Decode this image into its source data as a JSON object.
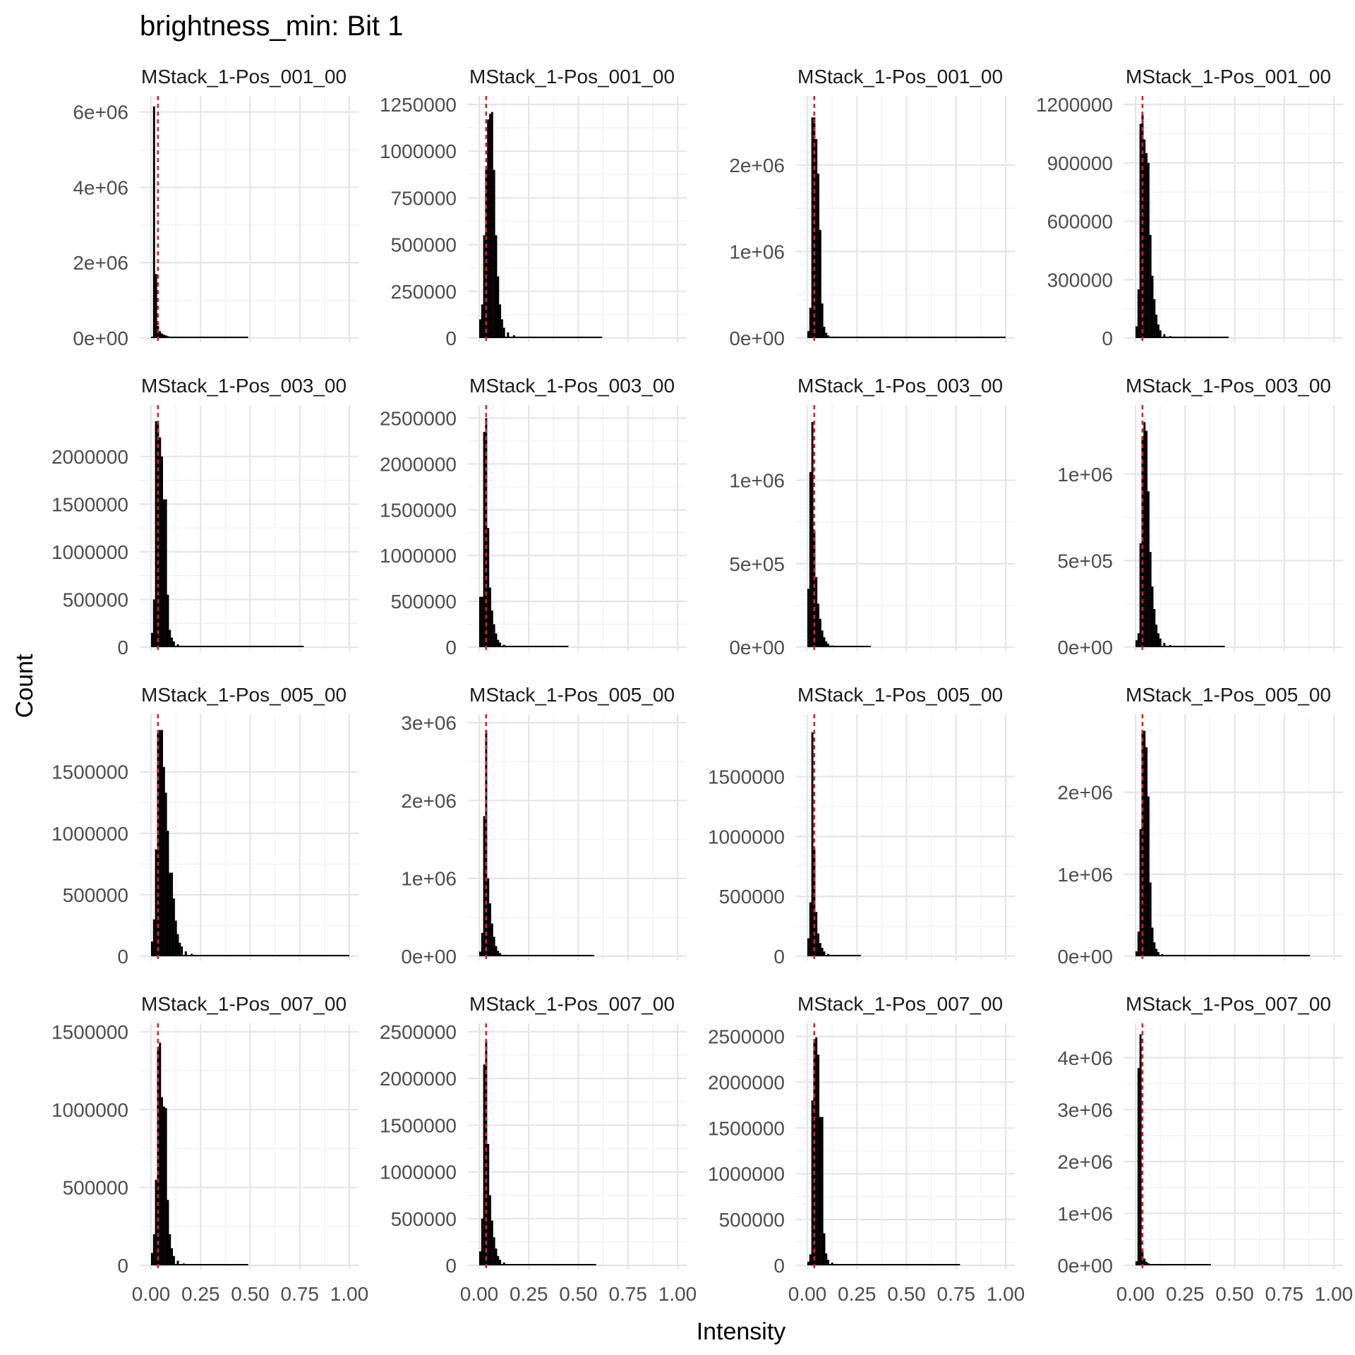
{
  "chart_data": {
    "type": "histogram",
    "title": "brightness_min: Bit 1",
    "xlabel": "Intensity",
    "ylabel": "Count",
    "x_ticks": [
      "0.00",
      "0.25",
      "0.50",
      "0.75",
      "1.00"
    ],
    "xlim": [
      0,
      1
    ],
    "threshold_line": {
      "x": 0.035,
      "color": "#e41a1c",
      "style": "dashed"
    },
    "bar_color": "#000000",
    "grid": true,
    "panels": [
      {
        "label": "MStack_1-Pos_001_00",
        "ymax": 6200000,
        "ticks": [
          0,
          2000000,
          4000000,
          6000000
        ],
        "tick_labels": [
          "0e+00",
          "2e+06",
          "4e+06",
          "6e+06"
        ],
        "max_x": 0.49,
        "bins": [
          [
            0.01,
            6150000
          ],
          [
            0.02,
            1700000
          ],
          [
            0.03,
            320000
          ],
          [
            0.04,
            180000
          ],
          [
            0.05,
            120000
          ],
          [
            0.06,
            90000
          ],
          [
            0.07,
            70000
          ],
          [
            0.08,
            50000
          ],
          [
            0.09,
            35000
          ],
          [
            0.1,
            25000
          ],
          [
            0.12,
            15000
          ],
          [
            0.15,
            8000
          ]
        ]
      },
      {
        "label": "MStack_1-Pos_001_00",
        "ymax": 1250000,
        "ticks": [
          0,
          250000,
          500000,
          750000,
          1000000,
          1250000
        ],
        "tick_labels": [
          "0",
          "250000",
          "500000",
          "750000",
          "1000000",
          "1250000"
        ],
        "max_x": 0.62,
        "bins": [
          [
            0.0,
            100000
          ],
          [
            0.01,
            180000
          ],
          [
            0.02,
            550000
          ],
          [
            0.03,
            900000
          ],
          [
            0.04,
            1170000
          ],
          [
            0.05,
            1200000
          ],
          [
            0.06,
            1210000
          ],
          [
            0.07,
            900000
          ],
          [
            0.08,
            550000
          ],
          [
            0.09,
            330000
          ],
          [
            0.1,
            180000
          ],
          [
            0.11,
            100000
          ],
          [
            0.12,
            55000
          ],
          [
            0.14,
            30000
          ],
          [
            0.17,
            15000
          ]
        ]
      },
      {
        "label": "MStack_1-Pos_001_00",
        "ymax": 2700000,
        "ticks": [
          0,
          1000000,
          2000000
        ],
        "tick_labels": [
          "0e+00",
          "1e+06",
          "2e+06"
        ],
        "max_x": 1.0,
        "bins": [
          [
            0.0,
            80000
          ],
          [
            0.01,
            350000
          ],
          [
            0.02,
            2550000
          ],
          [
            0.03,
            2550000
          ],
          [
            0.04,
            2300000
          ],
          [
            0.05,
            1900000
          ],
          [
            0.06,
            1250000
          ],
          [
            0.07,
            400000
          ],
          [
            0.08,
            130000
          ],
          [
            0.09,
            60000
          ],
          [
            0.1,
            30000
          ],
          [
            0.12,
            15000
          ]
        ]
      },
      {
        "label": "MStack_1-Pos_001_00",
        "ymax": 1200000,
        "ticks": [
          0,
          300000,
          600000,
          900000,
          1200000
        ],
        "tick_labels": [
          "0",
          "300000",
          "600000",
          "900000",
          "1200000"
        ],
        "max_x": 0.47,
        "bins": [
          [
            0.0,
            60000
          ],
          [
            0.01,
            250000
          ],
          [
            0.02,
            1100000
          ],
          [
            0.03,
            1150000
          ],
          [
            0.04,
            1020000
          ],
          [
            0.05,
            950000
          ],
          [
            0.06,
            900000
          ],
          [
            0.07,
            530000
          ],
          [
            0.08,
            320000
          ],
          [
            0.09,
            200000
          ],
          [
            0.1,
            120000
          ],
          [
            0.11,
            70000
          ],
          [
            0.12,
            40000
          ],
          [
            0.14,
            20000
          ],
          [
            0.17,
            10000
          ]
        ]
      },
      {
        "label": "MStack_1-Pos_003_00",
        "ymax": 2450000,
        "ticks": [
          0,
          500000,
          1000000,
          1500000,
          2000000
        ],
        "tick_labels": [
          "0",
          "500000",
          "1000000",
          "1500000",
          "2000000"
        ],
        "max_x": 0.77,
        "bins": [
          [
            0.0,
            150000
          ],
          [
            0.01,
            500000
          ],
          [
            0.02,
            2370000
          ],
          [
            0.03,
            2370000
          ],
          [
            0.04,
            2200000
          ],
          [
            0.05,
            2000000
          ],
          [
            0.06,
            1550000
          ],
          [
            0.07,
            1550000
          ],
          [
            0.08,
            550000
          ],
          [
            0.09,
            180000
          ],
          [
            0.1,
            100000
          ],
          [
            0.11,
            60000
          ],
          [
            0.13,
            30000
          ],
          [
            0.16,
            15000
          ]
        ]
      },
      {
        "label": "MStack_1-Pos_003_00",
        "ymax": 2550000,
        "ticks": [
          0,
          500000,
          1000000,
          1500000,
          2000000,
          2500000
        ],
        "tick_labels": [
          "0",
          "500000",
          "1000000",
          "1500000",
          "2000000",
          "2500000"
        ],
        "max_x": 0.45,
        "bins": [
          [
            0.0,
            550000
          ],
          [
            0.01,
            550000
          ],
          [
            0.02,
            2350000
          ],
          [
            0.03,
            2500000
          ],
          [
            0.04,
            1300000
          ],
          [
            0.05,
            650000
          ],
          [
            0.06,
            400000
          ],
          [
            0.07,
            250000
          ],
          [
            0.08,
            150000
          ],
          [
            0.09,
            80000
          ],
          [
            0.1,
            50000
          ],
          [
            0.12,
            25000
          ],
          [
            0.15,
            10000
          ]
        ]
      },
      {
        "label": "MStack_1-Pos_003_00",
        "ymax": 1400000,
        "ticks": [
          0,
          500000,
          1000000
        ],
        "tick_labels": [
          "0e+00",
          "5e+05",
          "1e+06"
        ],
        "max_x": 0.32,
        "bins": [
          [
            0.0,
            350000
          ],
          [
            0.01,
            1050000
          ],
          [
            0.02,
            1350000
          ],
          [
            0.03,
            700000
          ],
          [
            0.04,
            420000
          ],
          [
            0.05,
            260000
          ],
          [
            0.06,
            170000
          ],
          [
            0.07,
            100000
          ],
          [
            0.08,
            60000
          ],
          [
            0.09,
            35000
          ],
          [
            0.1,
            20000
          ],
          [
            0.12,
            10000
          ]
        ]
      },
      {
        "label": "MStack_1-Pos_003_00",
        "ymax": 1350000,
        "ticks": [
          0,
          500000,
          1000000
        ],
        "tick_labels": [
          "0e+00",
          "5e+05",
          "1e+06"
        ],
        "max_x": 0.45,
        "bins": [
          [
            0.0,
            40000
          ],
          [
            0.01,
            80000
          ],
          [
            0.02,
            600000
          ],
          [
            0.03,
            1220000
          ],
          [
            0.04,
            1300000
          ],
          [
            0.05,
            1250000
          ],
          [
            0.06,
            900000
          ],
          [
            0.07,
            550000
          ],
          [
            0.08,
            350000
          ],
          [
            0.09,
            220000
          ],
          [
            0.1,
            130000
          ],
          [
            0.11,
            80000
          ],
          [
            0.12,
            50000
          ],
          [
            0.14,
            25000
          ],
          [
            0.17,
            12000
          ]
        ]
      },
      {
        "label": "MStack_1-Pos_005_00",
        "ymax": 1900000,
        "ticks": [
          0,
          500000,
          1000000,
          1500000
        ],
        "tick_labels": [
          "0",
          "500000",
          "1000000",
          "1500000"
        ],
        "max_x": 1.0,
        "bins": [
          [
            0.0,
            120000
          ],
          [
            0.01,
            300000
          ],
          [
            0.02,
            870000
          ],
          [
            0.03,
            1820000
          ],
          [
            0.04,
            1840000
          ],
          [
            0.05,
            1840000
          ],
          [
            0.06,
            1540000
          ],
          [
            0.07,
            1330000
          ],
          [
            0.08,
            1020000
          ],
          [
            0.09,
            680000
          ],
          [
            0.1,
            680000
          ],
          [
            0.11,
            470000
          ],
          [
            0.12,
            290000
          ],
          [
            0.13,
            180000
          ],
          [
            0.14,
            110000
          ],
          [
            0.15,
            80000
          ],
          [
            0.17,
            40000
          ],
          [
            0.2,
            20000
          ],
          [
            0.25,
            8000
          ]
        ]
      },
      {
        "label": "MStack_1-Pos_005_00",
        "ymax": 3000000,
        "ticks": [
          0,
          1000000,
          2000000,
          3000000
        ],
        "tick_labels": [
          "0e+00",
          "1e+06",
          "2e+06",
          "3e+06"
        ],
        "max_x": 0.58,
        "bins": [
          [
            0.0,
            60000
          ],
          [
            0.01,
            300000
          ],
          [
            0.02,
            1800000
          ],
          [
            0.03,
            2900000
          ],
          [
            0.04,
            1000000
          ],
          [
            0.05,
            680000
          ],
          [
            0.06,
            420000
          ],
          [
            0.07,
            250000
          ],
          [
            0.08,
            130000
          ],
          [
            0.09,
            70000
          ],
          [
            0.1,
            40000
          ],
          [
            0.12,
            20000
          ],
          [
            0.15,
            8000
          ]
        ]
      },
      {
        "label": "MStack_1-Pos_005_00",
        "ymax": 1950000,
        "ticks": [
          0,
          500000,
          1000000,
          1500000
        ],
        "tick_labels": [
          "0",
          "500000",
          "1000000",
          "1500000"
        ],
        "max_x": 0.27,
        "bins": [
          [
            0.0,
            150000
          ],
          [
            0.01,
            450000
          ],
          [
            0.02,
            1870000
          ],
          [
            0.03,
            900000
          ],
          [
            0.04,
            370000
          ],
          [
            0.05,
            190000
          ],
          [
            0.06,
            110000
          ],
          [
            0.07,
            70000
          ],
          [
            0.08,
            40000
          ],
          [
            0.1,
            20000
          ],
          [
            0.12,
            10000
          ]
        ]
      },
      {
        "label": "MStack_1-Pos_005_00",
        "ymax": 2850000,
        "ticks": [
          0,
          1000000,
          2000000
        ],
        "tick_labels": [
          "0e+00",
          "1e+06",
          "2e+06"
        ],
        "max_x": 0.88,
        "bins": [
          [
            0.0,
            60000
          ],
          [
            0.01,
            300000
          ],
          [
            0.02,
            1550000
          ],
          [
            0.03,
            2750000
          ],
          [
            0.04,
            2750000
          ],
          [
            0.05,
            2550000
          ],
          [
            0.06,
            1950000
          ],
          [
            0.07,
            900000
          ],
          [
            0.08,
            350000
          ],
          [
            0.09,
            170000
          ],
          [
            0.1,
            90000
          ],
          [
            0.11,
            50000
          ],
          [
            0.13,
            25000
          ],
          [
            0.16,
            12000
          ]
        ]
      },
      {
        "label": "MStack_1-Pos_007_00",
        "ymax": 1500000,
        "ticks": [
          0,
          500000,
          1000000,
          1500000
        ],
        "tick_labels": [
          "0",
          "500000",
          "1000000",
          "1500000"
        ],
        "max_x": 0.49,
        "bins": [
          [
            0.0,
            80000
          ],
          [
            0.01,
            200000
          ],
          [
            0.02,
            550000
          ],
          [
            0.03,
            1400000
          ],
          [
            0.04,
            1430000
          ],
          [
            0.05,
            1080000
          ],
          [
            0.06,
            1020000
          ],
          [
            0.07,
            1010000
          ],
          [
            0.08,
            420000
          ],
          [
            0.09,
            200000
          ],
          [
            0.1,
            110000
          ],
          [
            0.11,
            60000
          ],
          [
            0.13,
            30000
          ],
          [
            0.16,
            12000
          ]
        ]
      },
      {
        "label": "MStack_1-Pos_007_00",
        "ymax": 2500000,
        "ticks": [
          0,
          500000,
          1000000,
          1500000,
          2000000,
          2500000
        ],
        "tick_labels": [
          "0",
          "500000",
          "1000000",
          "1500000",
          "2000000",
          "2500000"
        ],
        "max_x": 0.59,
        "bins": [
          [
            0.0,
            150000
          ],
          [
            0.01,
            500000
          ],
          [
            0.02,
            2150000
          ],
          [
            0.03,
            2400000
          ],
          [
            0.04,
            1300000
          ],
          [
            0.05,
            750000
          ],
          [
            0.06,
            480000
          ],
          [
            0.07,
            300000
          ],
          [
            0.08,
            180000
          ],
          [
            0.09,
            100000
          ],
          [
            0.1,
            60000
          ],
          [
            0.12,
            30000
          ],
          [
            0.15,
            12000
          ]
        ]
      },
      {
        "label": "MStack_1-Pos_007_00",
        "ymax": 2550000,
        "ticks": [
          0,
          500000,
          1000000,
          1500000,
          2000000,
          2500000
        ],
        "tick_labels": [
          "0",
          "500000",
          "1000000",
          "1500000",
          "2000000",
          "2500000"
        ],
        "max_x": 0.77,
        "bins": [
          [
            0.0,
            40000
          ],
          [
            0.01,
            120000
          ],
          [
            0.02,
            1800000
          ],
          [
            0.03,
            2470000
          ],
          [
            0.04,
            2490000
          ],
          [
            0.05,
            2300000
          ],
          [
            0.06,
            1620000
          ],
          [
            0.07,
            1620000
          ],
          [
            0.08,
            350000
          ],
          [
            0.09,
            130000
          ],
          [
            0.1,
            60000
          ],
          [
            0.12,
            30000
          ],
          [
            0.15,
            12000
          ]
        ]
      },
      {
        "label": "MStack_1-Pos_007_00",
        "ymax": 4500000,
        "ticks": [
          0,
          1000000,
          2000000,
          3000000,
          4000000
        ],
        "tick_labels": [
          "0e+00",
          "1e+06",
          "2e+06",
          "3e+06",
          "4e+06"
        ],
        "max_x": 0.38,
        "bins": [
          [
            0.0,
            80000
          ],
          [
            0.01,
            3800000
          ],
          [
            0.02,
            4450000
          ],
          [
            0.03,
            280000
          ],
          [
            0.04,
            130000
          ],
          [
            0.05,
            70000
          ],
          [
            0.06,
            40000
          ],
          [
            0.08,
            20000
          ],
          [
            0.1,
            8000
          ]
        ]
      }
    ]
  }
}
